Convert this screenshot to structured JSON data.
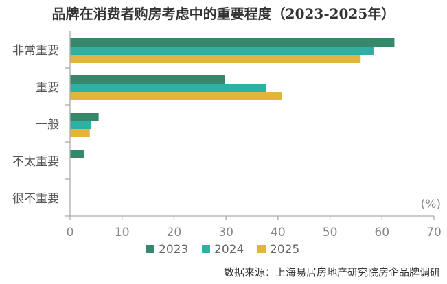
{
  "chart_data": {
    "type": "bar",
    "orientation": "horizontal",
    "title": "品牌在消费者购房考虑中的重要程度（2023-2025年）",
    "unit_label": "(%)",
    "categories": [
      "非常重要",
      "重要",
      "一般",
      "不太重要",
      "很不重要"
    ],
    "series": [
      {
        "name": "2023",
        "color": "#37876a",
        "values": [
          62.4,
          29.8,
          5.5,
          2.7,
          0
        ]
      },
      {
        "name": "2024",
        "color": "#2eb0a4",
        "values": [
          58.4,
          37.7,
          4.0,
          0,
          0
        ]
      },
      {
        "name": "2025",
        "color": "#e2b53d",
        "values": [
          55.9,
          40.7,
          3.8,
          0,
          0
        ]
      }
    ],
    "xlim": [
      0,
      70
    ],
    "xticks": [
      0,
      10,
      20,
      30,
      40,
      50,
      60,
      70
    ],
    "grid": false,
    "legend_placement": "bottom"
  },
  "source": "数据来源：上海易居房地产研究院房企品牌调研"
}
